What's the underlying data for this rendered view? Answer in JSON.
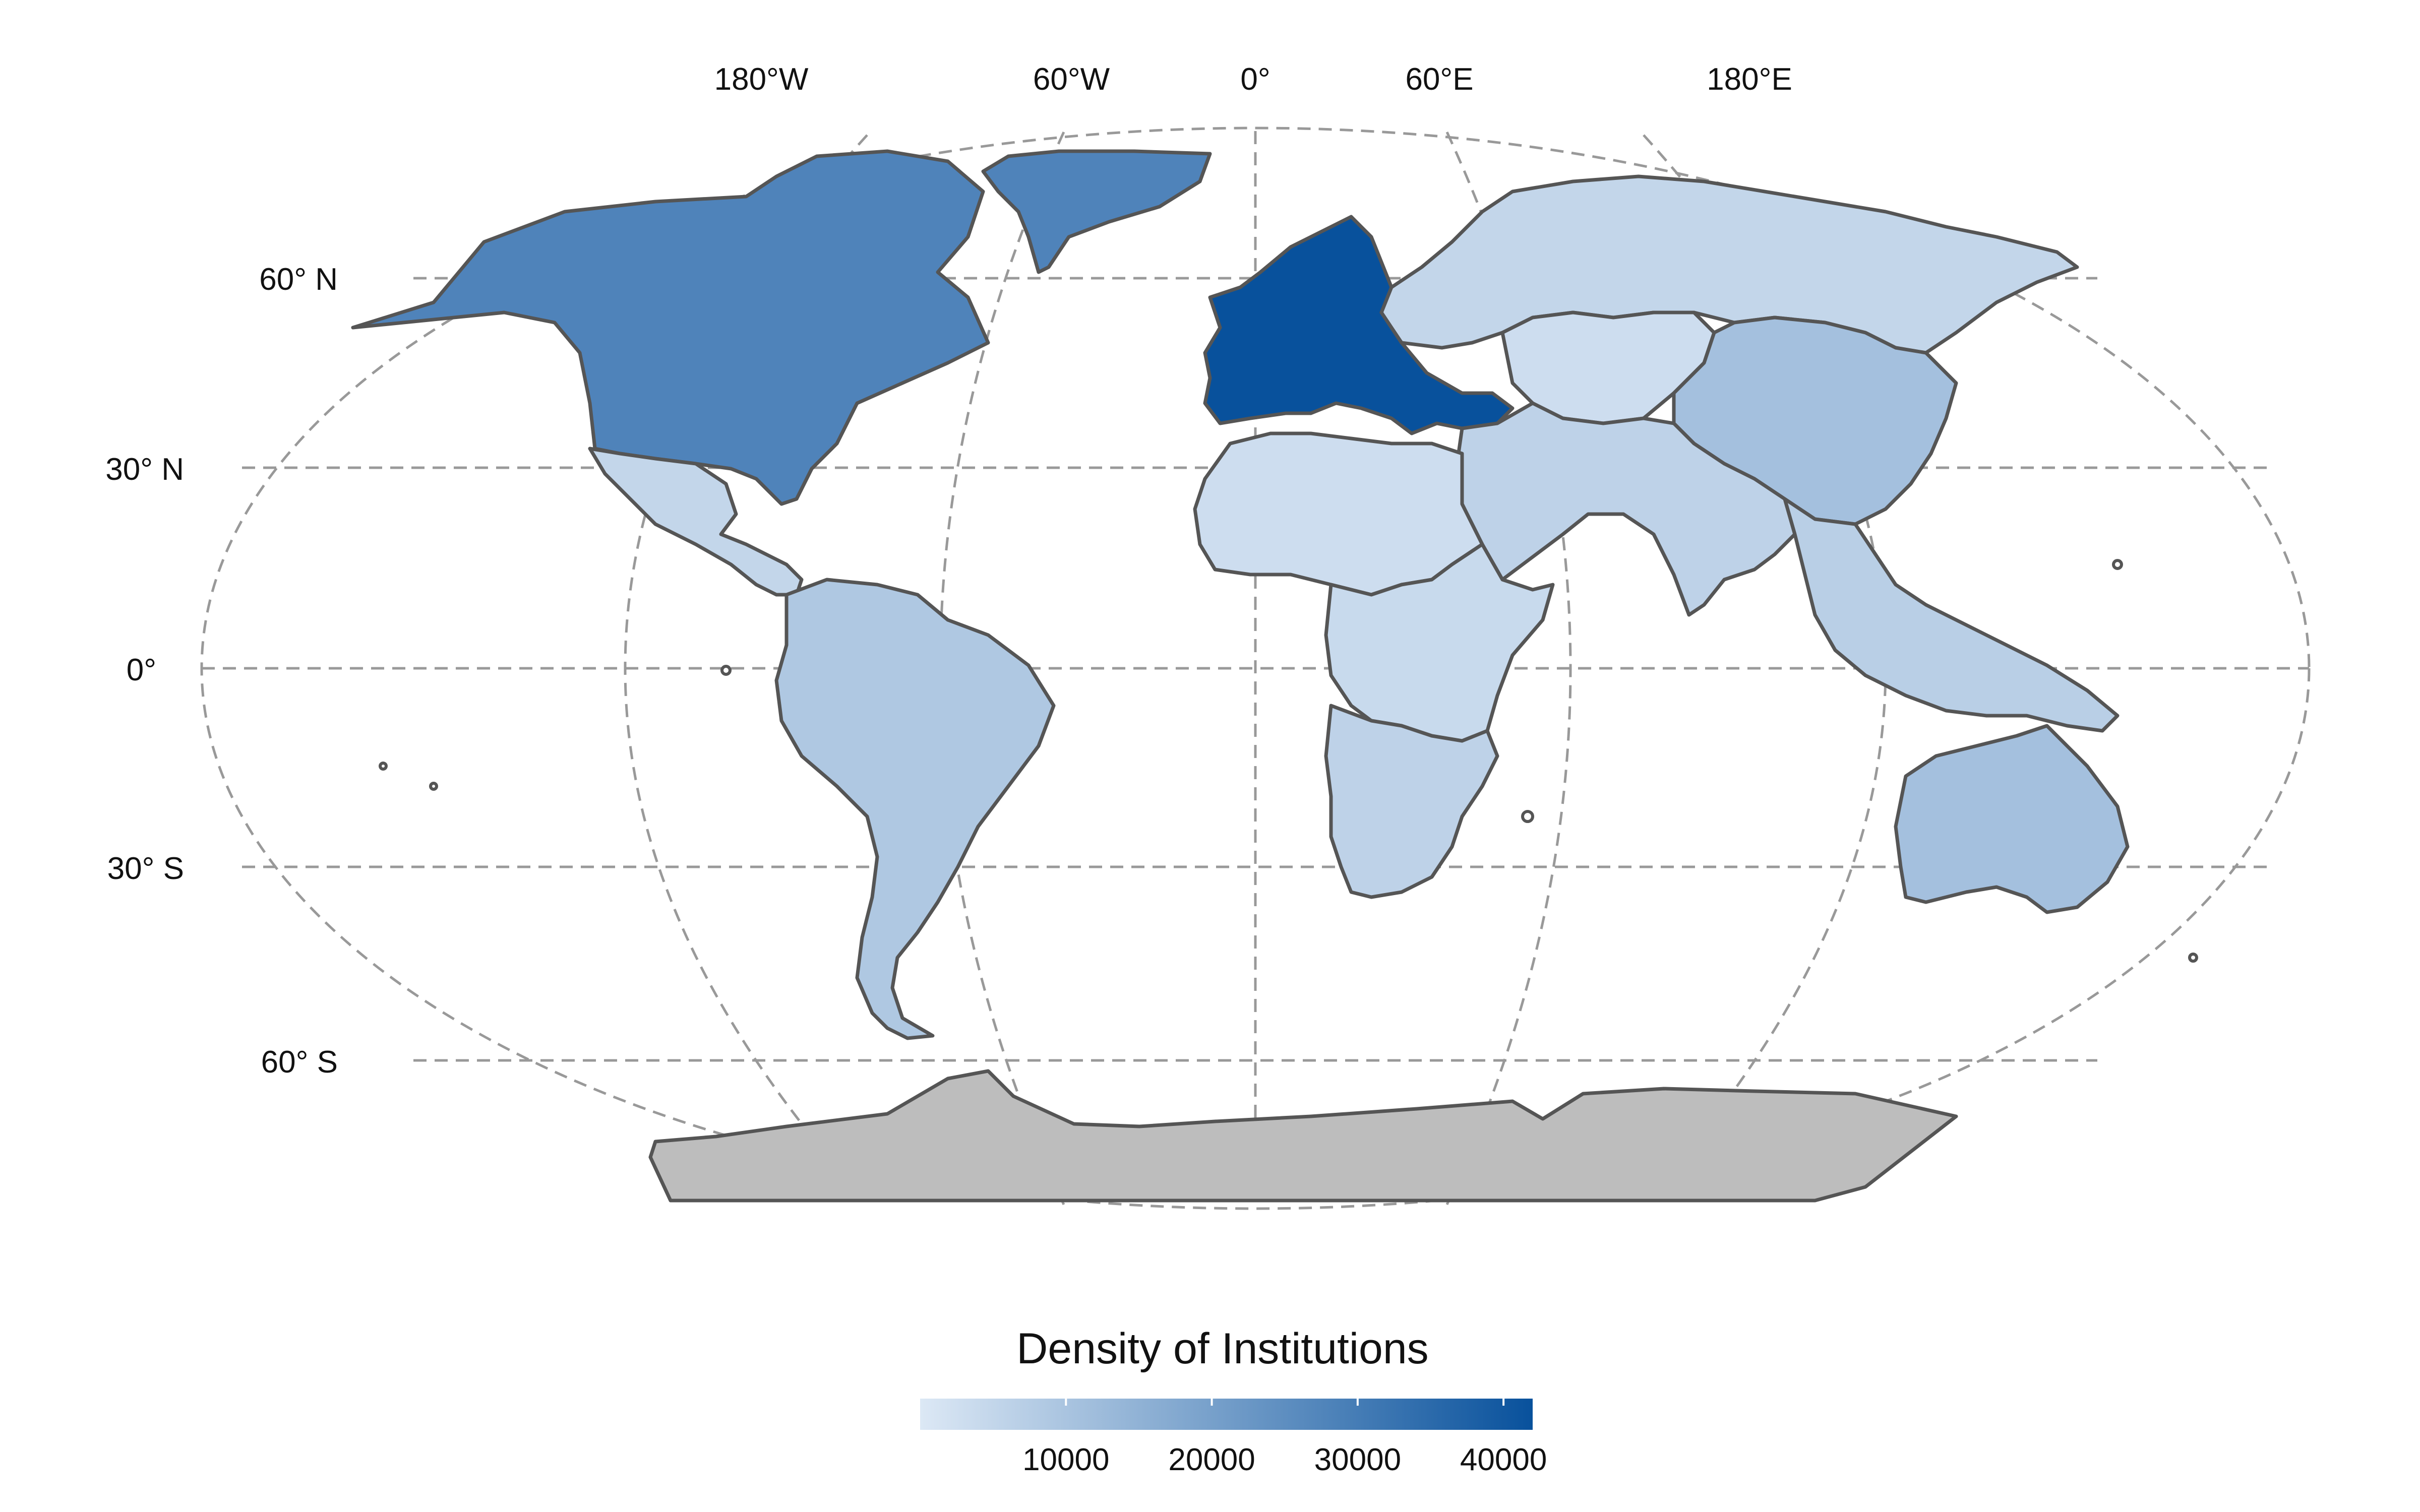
{
  "map": {
    "longitude_labels": [
      "180°W",
      "60°W",
      "0°",
      "60°E",
      "180°E"
    ],
    "latitude_labels": [
      "60° N",
      "30° N",
      "0°",
      "30° S",
      "60° S"
    ]
  },
  "regions": [
    {
      "name": "North America",
      "density": 28000
    },
    {
      "name": "Greenland",
      "density": 28000
    },
    {
      "name": "Europe",
      "density": 42000
    },
    {
      "name": "Russia",
      "density": 5000
    },
    {
      "name": "Central Asia",
      "density": 3000
    },
    {
      "name": "China and East Asia",
      "density": 11000
    },
    {
      "name": "South Asia and Middle East",
      "density": 6000
    },
    {
      "name": "Southeast Asia",
      "density": 7000
    },
    {
      "name": "Mexico and Central America",
      "density": 5000
    },
    {
      "name": "South America",
      "density": 9000
    },
    {
      "name": "North and West Africa",
      "density": 3000
    },
    {
      "name": "East Africa",
      "density": 4000
    },
    {
      "name": "Southern Africa",
      "density": 6000
    },
    {
      "name": "Oceania",
      "density": 11000
    },
    {
      "name": "Antarctica",
      "density": null
    }
  ],
  "legend": {
    "title": "Density of Institutions",
    "min": 0,
    "max": 42000,
    "ticks": [
      10000,
      20000,
      30000,
      40000
    ],
    "tick_labels": [
      "10000",
      "20000",
      "30000",
      "40000"
    ],
    "color_low": "#dce8f5",
    "color_high": "#08519c"
  },
  "colors": {
    "no_data": "#bdbdbd",
    "border": "#555555",
    "graticule": "#999999",
    "background": "#ffffff"
  }
}
